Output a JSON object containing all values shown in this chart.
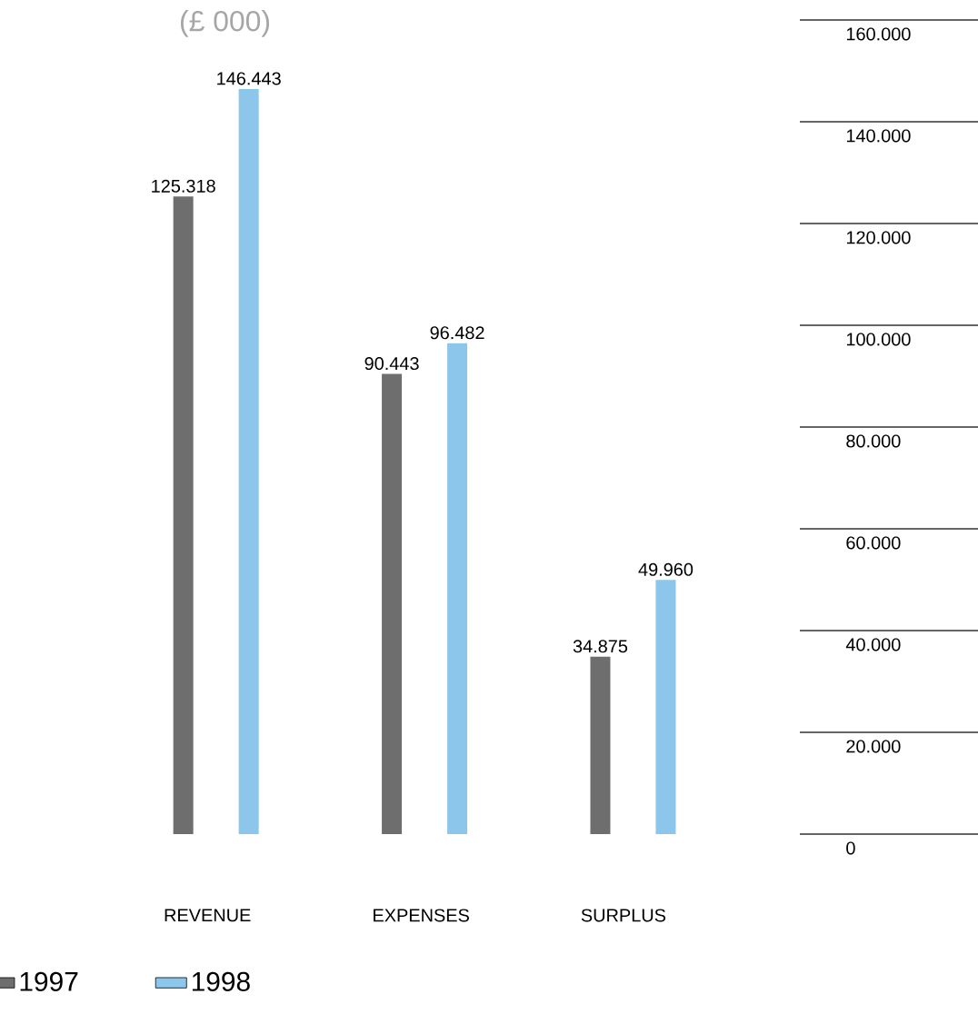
{
  "chart_data": {
    "type": "bar",
    "title": "(£ 000)",
    "categories": [
      "REVENUE",
      "EXPENSES",
      "SURPLUS"
    ],
    "series": [
      {
        "name": "1997",
        "color": "#6e6e6e",
        "values": [
          125318,
          90443,
          34875
        ],
        "value_labels": [
          "125.318",
          "90.443",
          "34.875"
        ]
      },
      {
        "name": "1998",
        "color": "#8cc6ea",
        "values": [
          146443,
          96482,
          49960
        ],
        "value_labels": [
          "146.443",
          "96.482",
          "49.960"
        ]
      }
    ],
    "ylim": [
      0,
      160000
    ],
    "yticks": [
      0,
      {
        "value": 20000,
        "label": "20.000"
      },
      {
        "value": 40000,
        "label": "40.000"
      },
      {
        "value": 60000,
        "label": "60.000"
      },
      {
        "value": 80000,
        "label": "80.000"
      },
      {
        "value": 100000,
        "label": "100.000"
      },
      {
        "value": 120000,
        "label": "120.000"
      },
      {
        "value": 140000,
        "label": "140.000"
      },
      {
        "value": 160000,
        "label": "160.000"
      }
    ],
    "legend": "bottom"
  }
}
